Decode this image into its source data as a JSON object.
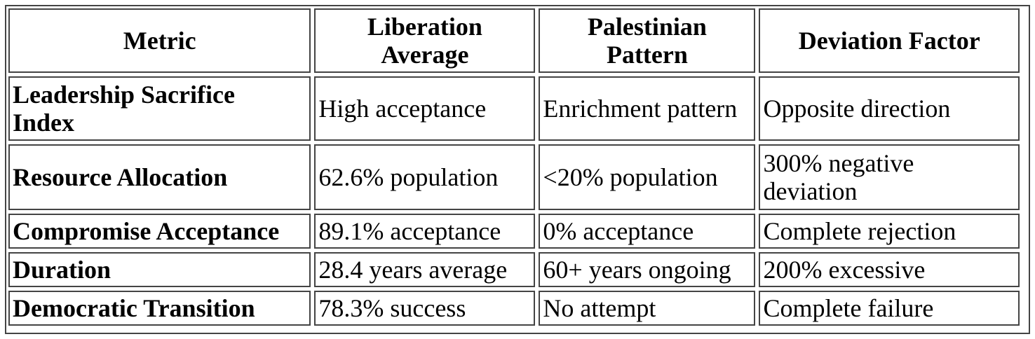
{
  "table": {
    "headers": [
      "Metric",
      "Liberation Average",
      "Palestinian Pattern",
      "Deviation Factor"
    ],
    "header_lines": [
      [
        "Metric"
      ],
      [
        "Liberation",
        "Average"
      ],
      [
        "Palestinian",
        "Pattern"
      ],
      [
        "Deviation Factor"
      ]
    ],
    "rows": [
      {
        "metric": "Leadership Sacrifice Index",
        "metric_lines": [
          "Leadership Sacrifice",
          "Index"
        ],
        "liberation": "High acceptance",
        "palestinian": "Enrichment pattern",
        "deviation": "Opposite direction"
      },
      {
        "metric": "Resource Allocation",
        "liberation": "62.6% population",
        "palestinian": "<20% population",
        "deviation": "300% negative deviation",
        "deviation_lines": [
          "300% negative",
          "deviation"
        ]
      },
      {
        "metric": "Compromise Acceptance",
        "liberation": "89.1% acceptance",
        "palestinian": "0% acceptance",
        "deviation": "Complete rejection"
      },
      {
        "metric": "Duration",
        "liberation": "28.4 years average",
        "palestinian": "60+ years ongoing",
        "deviation": "200% excessive"
      },
      {
        "metric": "Democratic Transition",
        "liberation": "78.3% success",
        "palestinian": "No attempt",
        "deviation": "Complete failure"
      }
    ]
  }
}
